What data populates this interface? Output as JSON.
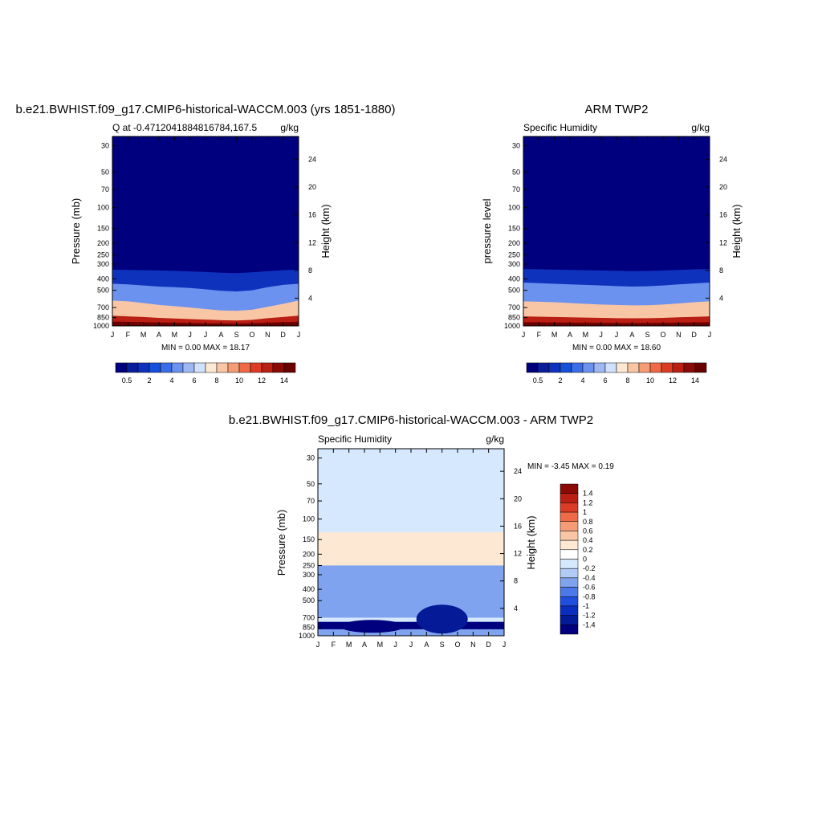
{
  "chart_data": [
    {
      "type": "heatmap",
      "title": "b.e21.BWHIST.f09_g17.CMIP6-historical-WACCM.003 (yrs 1851-1880)",
      "left_subtitle": "Q at -0.4712041884816784,167.5",
      "right_subtitle": "g/kg",
      "ylabel": "Pressure (mb)",
      "y2label": "Height (km)",
      "x_ticks": [
        "J",
        "F",
        "M",
        "A",
        "M",
        "J",
        "J",
        "A",
        "S",
        "O",
        "N",
        "D",
        "J"
      ],
      "y_ticks": [
        30,
        50,
        70,
        100,
        150,
        200,
        250,
        300,
        400,
        500,
        700,
        850,
        1000
      ],
      "y2_ticks": [
        24,
        20,
        16,
        12,
        8,
        4
      ],
      "ylim": [
        1000,
        25
      ],
      "stats": "MIN =   0.00 MAX =  18.17",
      "colorbar_labels": [
        "0.5",
        "2",
        "4",
        "6",
        "8",
        "10",
        "12",
        "14"
      ],
      "colorbar_colors": [
        "#00007f",
        "#0a1e9b",
        "#0f32bd",
        "#1450d8",
        "#3a6ee8",
        "#6b92ef",
        "#9fb8f4",
        "#cfe1fb",
        "#fde8d3",
        "#f9c6a5",
        "#f59c75",
        "#ef6a47",
        "#dc3c26",
        "#b91f12",
        "#8a0b06",
        "#6a0000"
      ],
      "levels": [
        0.5,
        1,
        2,
        3,
        4,
        5,
        6,
        7,
        8,
        9,
        10,
        11,
        12,
        13,
        14
      ],
      "months": [
        "Jan",
        "Feb",
        "Mar",
        "Apr",
        "May",
        "Jun",
        "Jul",
        "Aug",
        "Sep",
        "Oct",
        "Nov",
        "Dec",
        "Jan"
      ],
      "contour_p": {
        "0.5": [
          335,
          336,
          338,
          340,
          342,
          346,
          350,
          355,
          358,
          352,
          344,
          338,
          335
        ],
        "2": [
          440,
          445,
          455,
          465,
          470,
          478,
          490,
          505,
          512,
          500,
          470,
          450,
          440
        ],
        "6": [
          610,
          620,
          640,
          665,
          680,
          700,
          720,
          740,
          745,
          730,
          690,
          650,
          610
        ],
        "10": [
          820,
          830,
          840,
          855,
          865,
          875,
          885,
          895,
          900,
          890,
          860,
          840,
          820
        ],
        "14": [
          920,
          925,
          930,
          935,
          940,
          945,
          950,
          955,
          955,
          950,
          940,
          930,
          920
        ]
      }
    },
    {
      "type": "heatmap",
      "title": "ARM TWP2",
      "left_subtitle": "Specific Humidity",
      "right_subtitle": "g/kg",
      "ylabel": "pressure level",
      "y2label": "Height (km)",
      "x_ticks": [
        "J",
        "F",
        "M",
        "A",
        "M",
        "J",
        "J",
        "A",
        "S",
        "O",
        "N",
        "D",
        "J"
      ],
      "y_ticks": [
        30,
        50,
        70,
        100,
        150,
        200,
        250,
        300,
        400,
        500,
        700,
        850,
        1000
      ],
      "y2_ticks": [
        24,
        20,
        16,
        12,
        8,
        4
      ],
      "ylim": [
        1000,
        25
      ],
      "stats": "MIN =   0.00 MAX =  18.60",
      "colorbar_labels": [
        "0.5",
        "2",
        "4",
        "6",
        "8",
        "10",
        "12",
        "14"
      ],
      "colorbar_colors": [
        "#00007f",
        "#0a1e9b",
        "#0f32bd",
        "#1450d8",
        "#3a6ee8",
        "#6b92ef",
        "#9fb8f4",
        "#cfe1fb",
        "#fde8d3",
        "#f9c6a5",
        "#f59c75",
        "#ef6a47",
        "#dc3c26",
        "#b91f12",
        "#8a0b06",
        "#6a0000"
      ],
      "levels": [
        0.5,
        1,
        2,
        3,
        4,
        5,
        6,
        7,
        8,
        9,
        10,
        11,
        12,
        13,
        14
      ],
      "months": [
        "Jan",
        "Feb",
        "Mar",
        "Apr",
        "May",
        "Jun",
        "Jul",
        "Aug",
        "Sep",
        "Oct",
        "Nov",
        "Dec",
        "Jan"
      ],
      "contour_p": {
        "0.5": [
          330,
          332,
          334,
          336,
          338,
          340,
          342,
          344,
          343,
          340,
          336,
          332,
          330
        ],
        "2": [
          430,
          435,
          440,
          445,
          450,
          455,
          460,
          465,
          462,
          455,
          445,
          438,
          430
        ],
        "6": [
          620,
          625,
          630,
          640,
          650,
          660,
          665,
          670,
          668,
          660,
          645,
          630,
          620
        ],
        "10": [
          830,
          835,
          840,
          845,
          850,
          855,
          860,
          862,
          860,
          855,
          845,
          838,
          830
        ],
        "14": [
          930,
          932,
          935,
          938,
          940,
          942,
          944,
          945,
          944,
          942,
          938,
          934,
          930
        ]
      }
    },
    {
      "type": "heatmap",
      "title": "b.e21.BWHIST.f09_g17.CMIP6-historical-WACCM.003 - ARM TWP2",
      "left_subtitle": "Specific Humidity",
      "right_subtitle": "g/kg",
      "ylabel": "Pressure (mb)",
      "y2label": "Height (km)",
      "x_ticks": [
        "J",
        "F",
        "M",
        "A",
        "M",
        "J",
        "J",
        "A",
        "S",
        "O",
        "N",
        "D",
        "J"
      ],
      "y_ticks": [
        30,
        50,
        70,
        100,
        150,
        200,
        250,
        300,
        400,
        500,
        700,
        850,
        1000
      ],
      "y2_ticks": [
        24,
        20,
        16,
        12,
        8,
        4
      ],
      "ylim": [
        1000,
        25
      ],
      "stats": "MIN =  -3.45 MAX =   0.19",
      "colorbar_labels": [
        "1.4",
        "1.2",
        "1",
        "0.8",
        "0.6",
        "0.4",
        "0.2",
        "0",
        "-0.2",
        "-0.4",
        "-0.6",
        "-0.8",
        "-1",
        "-1.2",
        "-1.4"
      ],
      "colorbar_colors": [
        "#8a0b06",
        "#b91f12",
        "#dc3c26",
        "#ef6a47",
        "#f59c75",
        "#f9c6a5",
        "#fde8d3",
        "#ffffff",
        "#d6e8fd",
        "#b0ccf6",
        "#7fa3ee",
        "#4c78e8",
        "#1f4fdc",
        "#0a2fbf",
        "#041a97",
        "#00007f"
      ],
      "regions": {
        "near_zero_upper": {
          "p_range": [
            25,
            130
          ],
          "value": -0.1
        },
        "slightly_positive": {
          "p_range": [
            130,
            250
          ],
          "value": 0.1
        },
        "mid_mixed": {
          "p_range": [
            250,
            700
          ],
          "value": -0.3
        },
        "lower_dry_band": {
          "p_range": [
            760,
            880
          ],
          "value": -1.4
        },
        "surface": {
          "p_range": [
            880,
            1000
          ],
          "value": -0.4
        }
      }
    }
  ]
}
